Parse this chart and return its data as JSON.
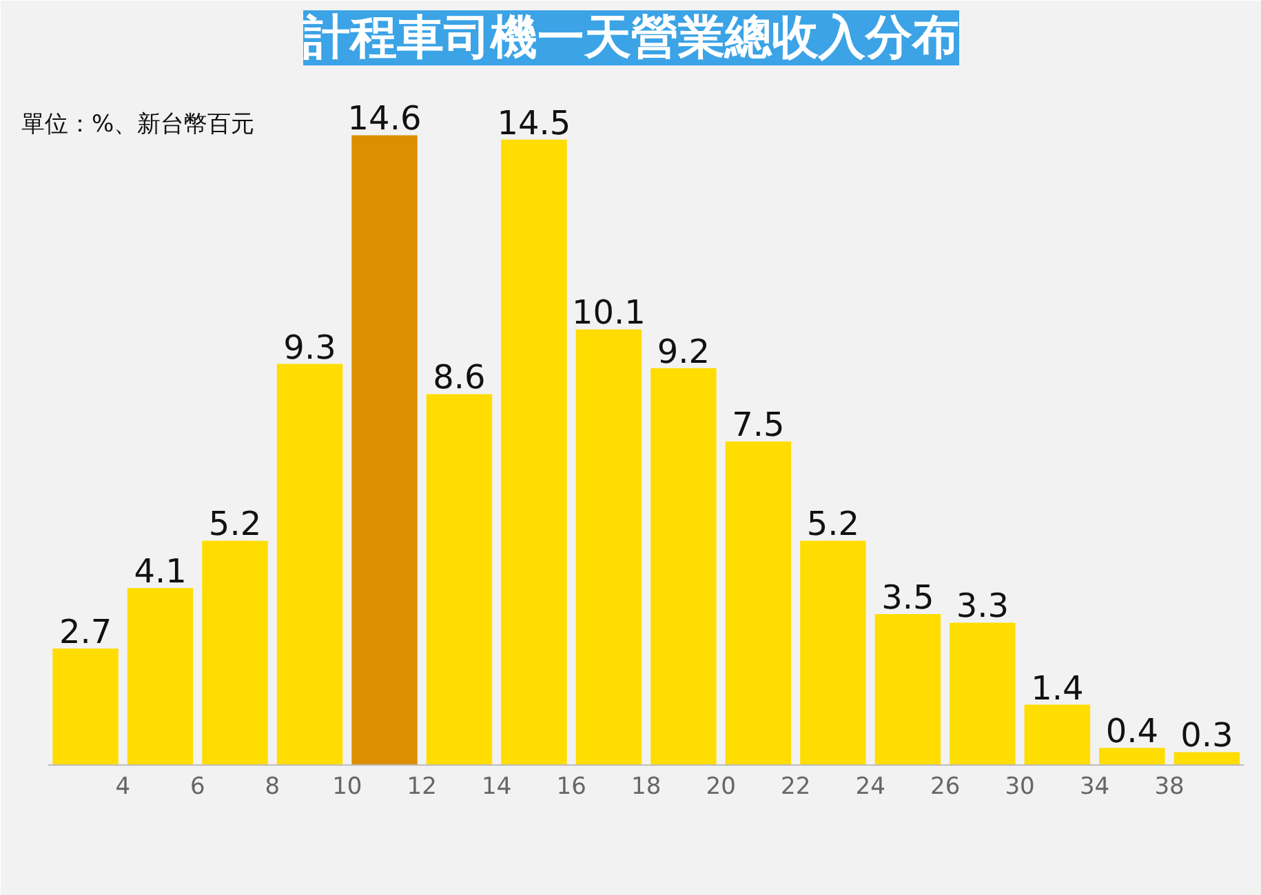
{
  "chart_data": {
    "type": "bar",
    "title": "計程車司機一天營業總收入分布",
    "subtitle": "單位：%、新台幣百元",
    "categories": [
      null,
      null,
      null,
      null,
      null,
      null,
      null,
      null,
      null,
      null,
      null,
      null,
      null,
      null,
      null,
      null
    ],
    "values": [
      2.7,
      4.1,
      5.2,
      9.3,
      14.6,
      8.6,
      14.5,
      10.1,
      9.2,
      7.5,
      5.2,
      3.5,
      3.3,
      1.4,
      0.4,
      0.3
    ],
    "colors": [
      "#ffdd00",
      "#ffdd00",
      "#ffdd00",
      "#ffdd00",
      "#de8f00",
      "#ffdd00",
      "#ffdd00",
      "#ffdd00",
      "#ffdd00",
      "#ffdd00",
      "#ffdd00",
      "#ffdd00",
      "#ffdd00",
      "#ffdd00",
      "#ffdd00",
      "#ffdd00"
    ],
    "annotations": [
      "4",
      "6",
      "8",
      "10",
      "12",
      "14",
      "16",
      "18",
      "20",
      "22",
      "24",
      "26",
      "30",
      "34",
      "38"
    ],
    "data_labels": true
  }
}
